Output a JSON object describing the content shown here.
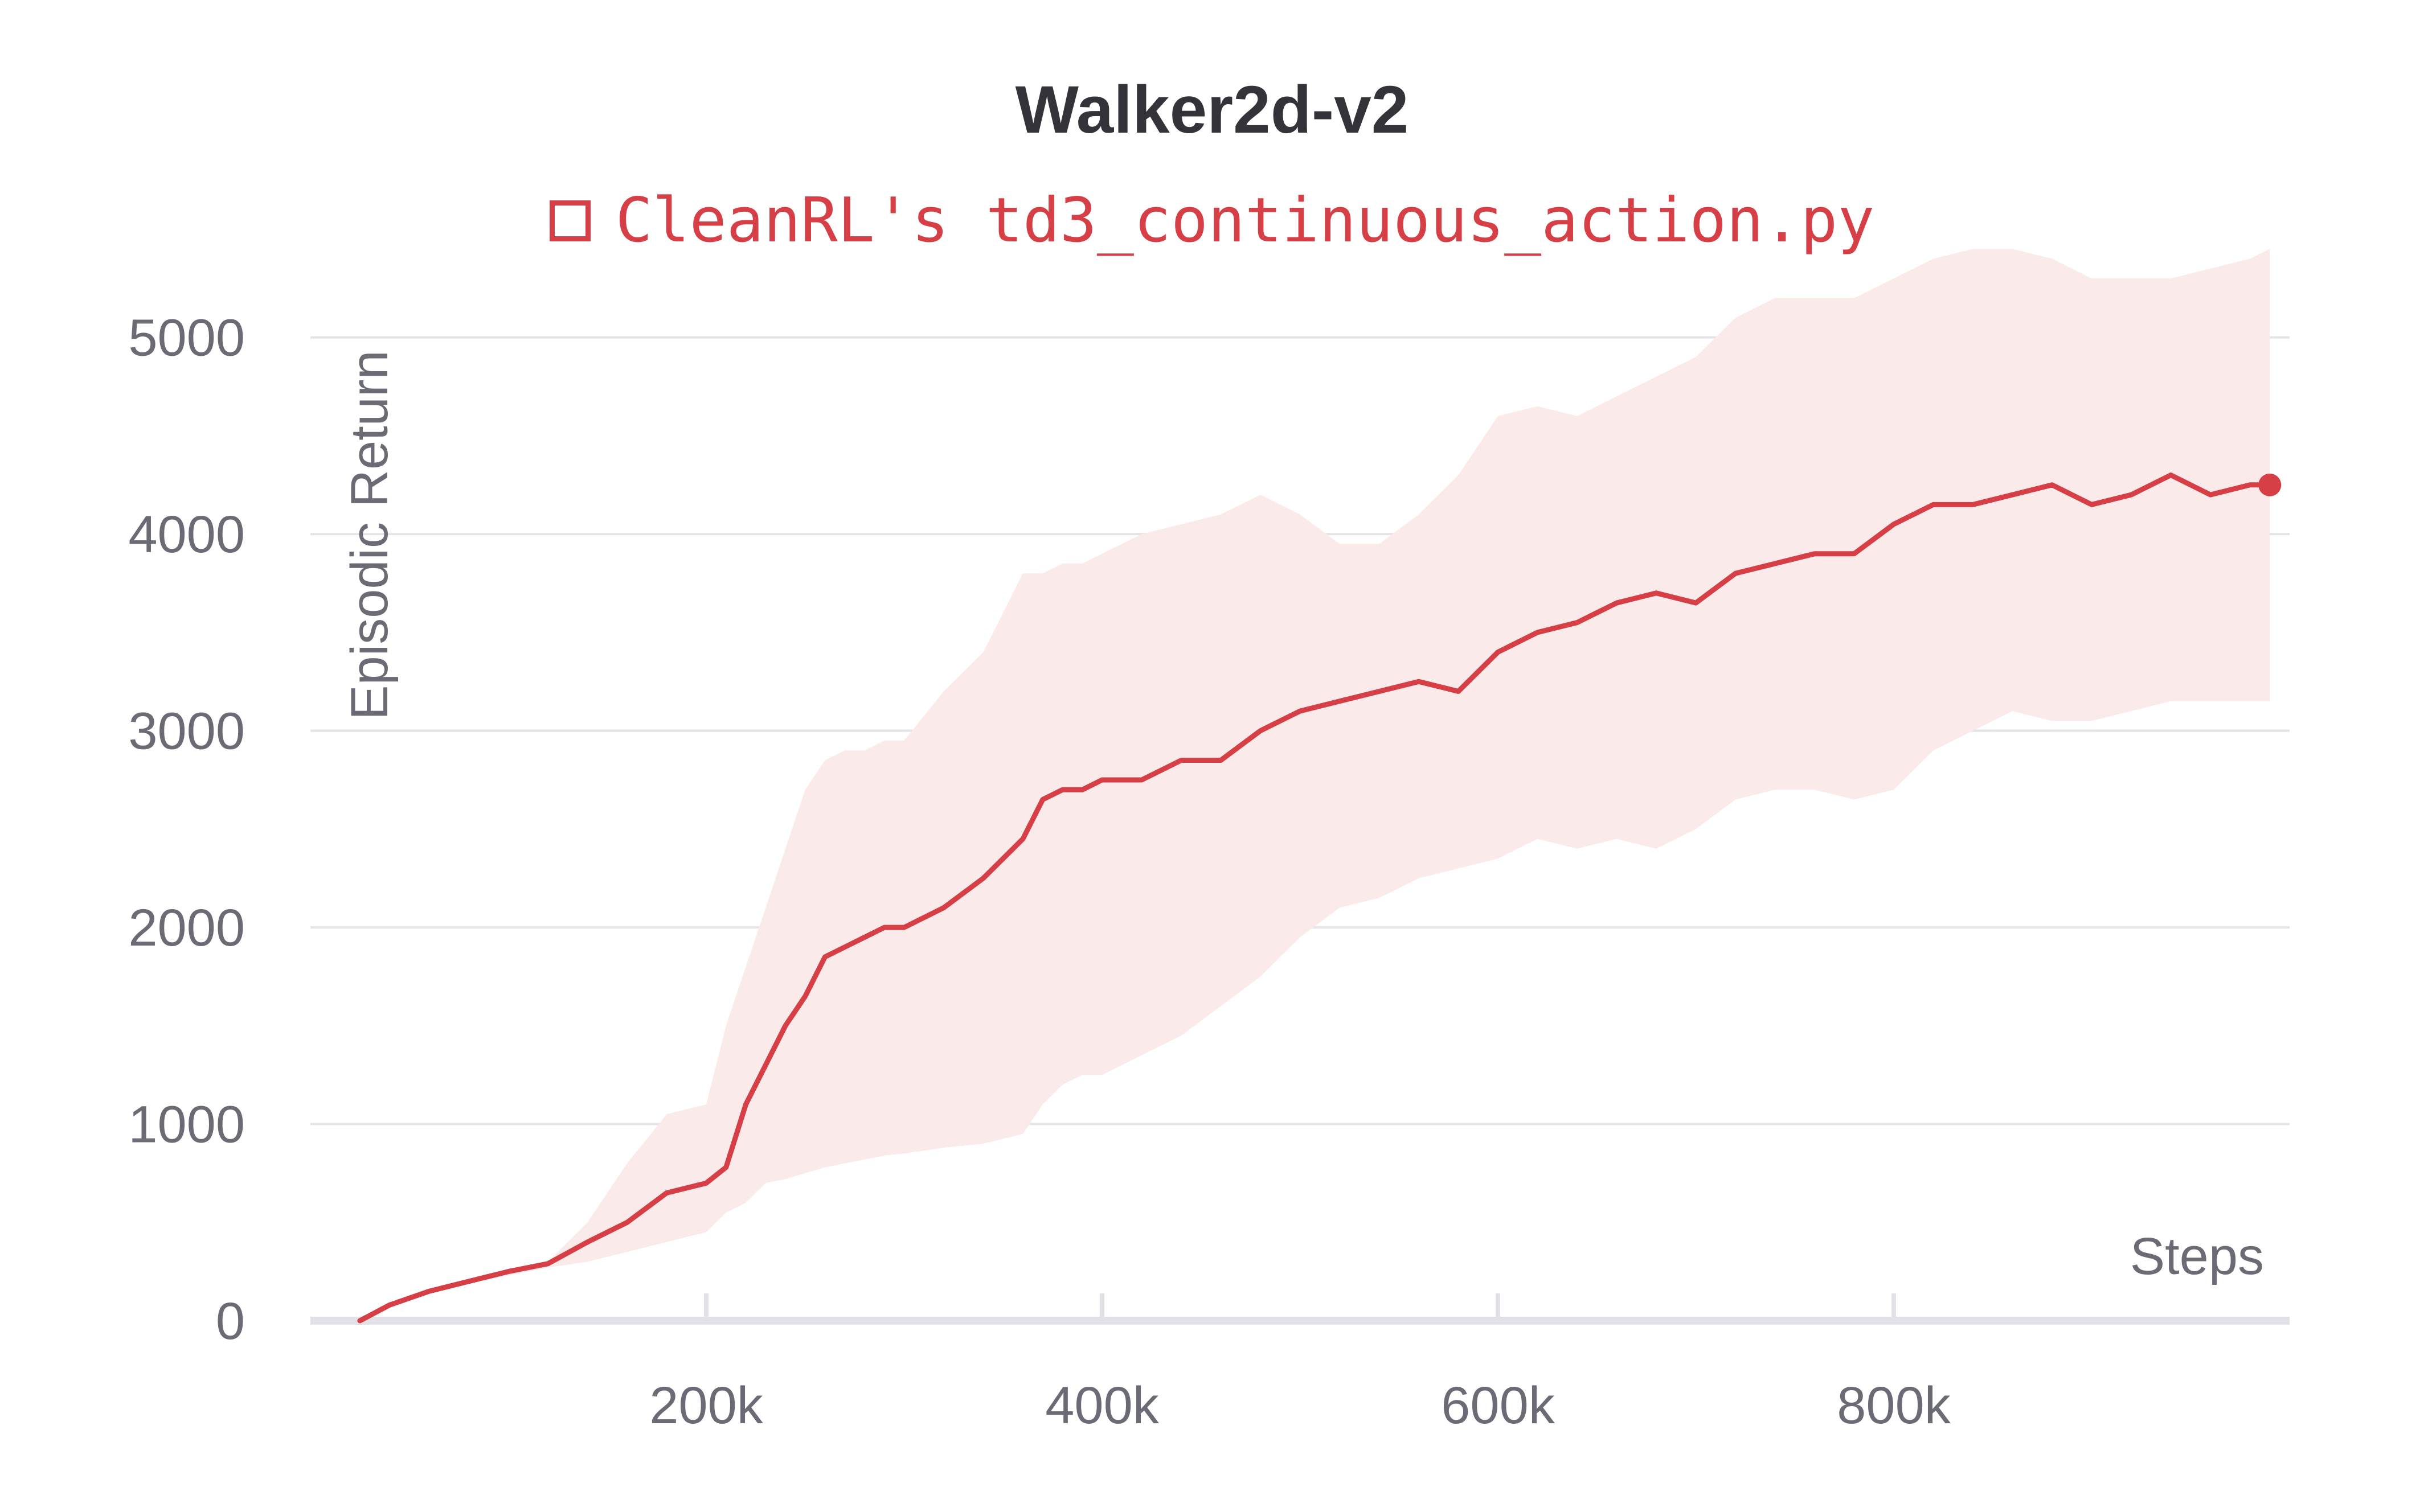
{
  "chart_data": {
    "type": "line",
    "title": "Walker2d-v2",
    "xlabel": "Steps",
    "ylabel": "Episodic Return",
    "xlim": [
      0,
      990000
    ],
    "ylim": [
      0,
      5000
    ],
    "x_ticks": [
      200000,
      400000,
      600000,
      800000
    ],
    "x_tick_labels": [
      "200k",
      "400k",
      "600k",
      "800k"
    ],
    "y_ticks": [
      0,
      1000,
      2000,
      3000,
      4000,
      5000
    ],
    "y_tick_labels": [
      "0",
      "1000",
      "2000",
      "3000",
      "4000",
      "5000"
    ],
    "grid": true,
    "legend_position": "top",
    "series": [
      {
        "name": "CleanRL's td3_continuous_action.py",
        "color": "#d63f45",
        "band_color": "#fbeaea",
        "x": [
          25000,
          40000,
          60000,
          80000,
          100000,
          120000,
          140000,
          160000,
          180000,
          200000,
          210000,
          220000,
          230000,
          240000,
          250000,
          260000,
          270000,
          280000,
          290000,
          300000,
          320000,
          340000,
          360000,
          370000,
          380000,
          390000,
          400000,
          420000,
          440000,
          460000,
          480000,
          500000,
          520000,
          540000,
          560000,
          580000,
          600000,
          620000,
          640000,
          660000,
          680000,
          700000,
          720000,
          740000,
          760000,
          780000,
          800000,
          820000,
          840000,
          860000,
          880000,
          900000,
          920000,
          940000,
          960000,
          980000,
          990000
        ],
        "y": [
          0,
          80,
          150,
          200,
          250,
          290,
          400,
          500,
          650,
          700,
          780,
          1100,
          1300,
          1500,
          1650,
          1850,
          1900,
          1950,
          2000,
          2000,
          2100,
          2250,
          2450,
          2650,
          2700,
          2700,
          2750,
          2750,
          2850,
          2850,
          3000,
          3100,
          3150,
          3200,
          3250,
          3200,
          3400,
          3500,
          3550,
          3650,
          3700,
          3650,
          3800,
          3850,
          3900,
          3900,
          4050,
          4150,
          4150,
          4200,
          4250,
          4150,
          4200,
          4300,
          4200,
          4250,
          4250
        ],
        "y_upper": [
          0,
          80,
          150,
          200,
          260,
          300,
          500,
          800,
          1050,
          1100,
          1500,
          1800,
          2100,
          2400,
          2700,
          2850,
          2900,
          2900,
          2950,
          2950,
          3200,
          3400,
          3800,
          3800,
          3850,
          3850,
          3900,
          4000,
          4050,
          4100,
          4200,
          4100,
          3950,
          3950,
          4100,
          4300,
          4600,
          4650,
          4600,
          4700,
          4800,
          4900,
          5100,
          5200,
          5200,
          5200,
          5300,
          5400,
          5450,
          5450,
          5400,
          5300,
          5300,
          5300,
          5350,
          5400,
          5450
        ],
        "y_lower": [
          0,
          70,
          140,
          190,
          230,
          270,
          300,
          350,
          400,
          450,
          550,
          600,
          700,
          720,
          750,
          780,
          800,
          820,
          840,
          850,
          880,
          900,
          950,
          1100,
          1200,
          1250,
          1250,
          1350,
          1450,
          1600,
          1750,
          1950,
          2100,
          2150,
          2250,
          2300,
          2350,
          2450,
          2400,
          2450,
          2400,
          2500,
          2650,
          2700,
          2700,
          2650,
          2700,
          2900,
          3000,
          3100,
          3050,
          3050,
          3100,
          3150,
          3150,
          3150,
          3150
        ]
      }
    ]
  }
}
